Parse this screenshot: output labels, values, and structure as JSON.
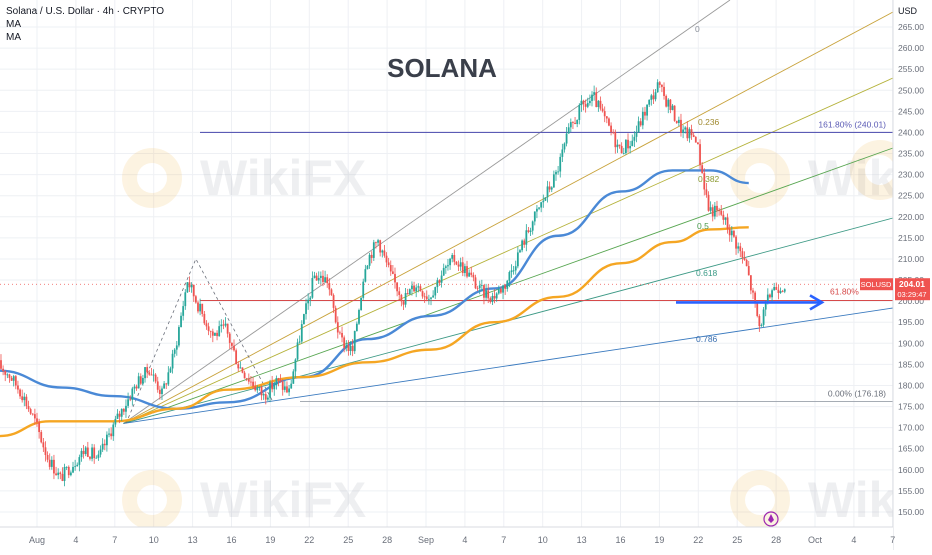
{
  "header": {
    "symbol_line": "Solana / U.S. Dollar · 4h · CRYPTO",
    "indicators": [
      "MA",
      "MA"
    ]
  },
  "watermark_title": "SOLANA",
  "price_axis": {
    "currency": "USD",
    "ticks": [
      "150.00",
      "155.00",
      "160.00",
      "165.00",
      "170.00",
      "175.00",
      "180.00",
      "185.00",
      "190.00",
      "195.00",
      "200.00",
      "205.00",
      "210.00",
      "215.00",
      "220.00",
      "225.00",
      "230.00",
      "235.00",
      "240.00",
      "245.00",
      "250.00",
      "255.00",
      "260.00",
      "265.00"
    ]
  },
  "time_axis": {
    "ticks": [
      "Aug",
      "4",
      "7",
      "10",
      "13",
      "16",
      "19",
      "22",
      "25",
      "28",
      "Sep",
      "4",
      "7",
      "10",
      "13",
      "16",
      "19",
      "22",
      "25",
      "28",
      "Oct",
      "4",
      "7"
    ]
  },
  "last_price": {
    "symbol": "SOLUSD",
    "price": "204.01",
    "countdown": "03:29:47",
    "value": 204.01
  },
  "fib_labels": {
    "ext": "161.80% (240.01)",
    "retr": "61.80%",
    "zero_pct": "0.00% (176.18)",
    "fan": [
      "0",
      "0.236",
      "0.382",
      "0.5",
      "0.618",
      "0.786"
    ]
  },
  "colors": {
    "up": "#26a69a",
    "down": "#ef5350",
    "ma_fast": "#4a89d6",
    "ma_slow": "#f5a623",
    "fib_ext_line": "#5b5bb5",
    "fib_retr_line": "#d64a4a",
    "arrow": "#2962ff"
  },
  "chart_data": {
    "type": "candlestick",
    "title": "Solana / U.S. Dollar · 4h · CRYPTO",
    "ylabel": "USD",
    "ylim": [
      147,
      268
    ],
    "date_range": [
      "Jul 29",
      "Oct 7"
    ],
    "x_ticks": [
      "Aug",
      "4",
      "7",
      "10",
      "13",
      "16",
      "19",
      "22",
      "25",
      "28",
      "Sep",
      "4",
      "7",
      "10",
      "13",
      "16",
      "19",
      "22",
      "25",
      "28",
      "Oct",
      "4",
      "7"
    ],
    "grid": true,
    "series": [
      {
        "name": "SOLUSD",
        "kind": "ohlc",
        "close_path": [
          [
            "Jul 29",
            185.2
          ],
          [
            "Jul 30",
            182.5
          ],
          [
            "Jul 31",
            178.0
          ],
          [
            "Aug 1",
            171.5
          ],
          [
            "Aug 2",
            163.0
          ],
          [
            "Aug 3",
            158.0
          ],
          [
            "Aug 4",
            161.5
          ],
          [
            "Aug 5",
            165.0
          ],
          [
            "Aug 6",
            162.5
          ],
          [
            "Aug 7",
            169.5
          ],
          [
            "Aug 8",
            175.0
          ],
          [
            "Aug 9",
            180.5
          ],
          [
            "Aug 10",
            184.0
          ],
          [
            "Aug 11",
            178.0
          ],
          [
            "Aug 12",
            188.0
          ],
          [
            "Aug 13",
            205.0
          ],
          [
            "Aug 14",
            198.0
          ],
          [
            "Aug 15",
            192.0
          ],
          [
            "Aug 16",
            193.5
          ],
          [
            "Aug 17",
            185.0
          ],
          [
            "Aug 18",
            181.0
          ],
          [
            "Aug 19",
            177.5
          ],
          [
            "Aug 20",
            181.0
          ],
          [
            "Aug 21",
            178.5
          ],
          [
            "Aug 22",
            194.0
          ],
          [
            "Aug 23",
            206.0
          ],
          [
            "Aug 24",
            205.0
          ],
          [
            "Aug 25",
            191.0
          ],
          [
            "Aug 26",
            188.0
          ],
          [
            "Aug 27",
            209.0
          ],
          [
            "Aug 28",
            214.5
          ],
          [
            "Aug 29",
            206.0
          ],
          [
            "Aug 30",
            200.5
          ],
          [
            "Aug 31",
            204.0
          ],
          [
            "Sep 1",
            201.0
          ],
          [
            "Sep 2",
            206.5
          ],
          [
            "Sep 3",
            210.0
          ],
          [
            "Sep 4",
            207.0
          ],
          [
            "Sep 5",
            202.5
          ],
          [
            "Sep 6",
            201.0
          ],
          [
            "Sep 7",
            204.0
          ],
          [
            "Sep 8",
            211.0
          ],
          [
            "Sep 9",
            218.0
          ],
          [
            "Sep 10",
            224.0
          ],
          [
            "Sep 11",
            230.0
          ],
          [
            "Sep 12",
            240.0
          ],
          [
            "Sep 13",
            246.0
          ],
          [
            "Sep 14",
            248.0
          ],
          [
            "Sep 15",
            242.0
          ],
          [
            "Sep 16",
            236.0
          ],
          [
            "Sep 17",
            238.0
          ],
          [
            "Sep 18",
            245.0
          ],
          [
            "Sep 19",
            251.0
          ],
          [
            "Sep 20",
            246.0
          ],
          [
            "Sep 21",
            240.0
          ],
          [
            "Sep 22",
            239.0
          ],
          [
            "Sep 23",
            222.0
          ],
          [
            "Sep 24",
            220.5
          ],
          [
            "Sep 25",
            215.0
          ],
          [
            "Sep 26",
            208.0
          ],
          [
            "Sep 27",
            194.0
          ],
          [
            "Sep 28",
            203.0
          ],
          [
            "Sep 29",
            204.0
          ]
        ]
      },
      {
        "name": "MA",
        "kind": "line",
        "color_key": "ma_fast",
        "points": [
          [
            "Jul 29",
            183.5
          ],
          [
            "Aug 3",
            179.5
          ],
          [
            "Aug 7",
            177.5
          ],
          [
            "Aug 12",
            174.5
          ],
          [
            "Aug 16",
            176.0
          ],
          [
            "Aug 22",
            182.0
          ],
          [
            "Aug 27",
            191.0
          ],
          [
            "Sep 1",
            196.5
          ],
          [
            "Sep 6",
            203.0
          ],
          [
            "Sep 11",
            215.5
          ],
          [
            "Sep 16",
            226.0
          ],
          [
            "Sep 20",
            231.0
          ],
          [
            "Sep 23",
            231.0
          ],
          [
            "Sep 26",
            228.0
          ]
        ]
      },
      {
        "name": "MA",
        "kind": "line",
        "color_key": "ma_slow",
        "points": [
          [
            "Jul 29",
            168.0
          ],
          [
            "Aug 2",
            171.5
          ],
          [
            "Aug 7",
            171.5
          ],
          [
            "Aug 12",
            174.5
          ],
          [
            "Aug 16",
            179.0
          ],
          [
            "Aug 22",
            182.0
          ],
          [
            "Aug 27",
            185.5
          ],
          [
            "Sep 1",
            188.5
          ],
          [
            "Sep 6",
            195.0
          ],
          [
            "Sep 11",
            201.0
          ],
          [
            "Sep 16",
            209.0
          ],
          [
            "Sep 20",
            214.0
          ],
          [
            "Sep 23",
            217.0
          ],
          [
            "Sep 26",
            217.5
          ]
        ]
      }
    ],
    "levels": [
      {
        "label": "161.80% (240.01)",
        "value": 240.01
      },
      {
        "label": "61.80%",
        "value": 200.15
      },
      {
        "label": "0.00% (176.18)",
        "value": 176.18
      }
    ],
    "annotations": [
      "0",
      "0.236",
      "0.382",
      "0.5",
      "0.618",
      "0.786"
    ]
  }
}
